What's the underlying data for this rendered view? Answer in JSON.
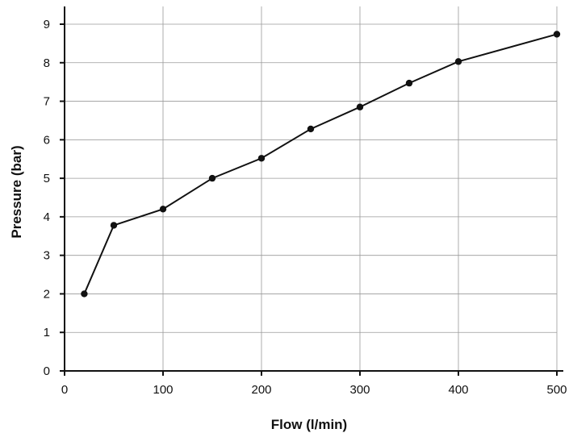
{
  "chart_data": {
    "type": "line",
    "title": "",
    "xlabel": "Flow (l/min)",
    "ylabel": "Pressure (bar)",
    "xlim": [
      0,
      500
    ],
    "ylim": [
      0,
      9
    ],
    "x_ticks": [
      0,
      100,
      200,
      300,
      400,
      500
    ],
    "y_ticks": [
      0,
      1,
      2,
      3,
      4,
      5,
      6,
      7,
      8,
      9
    ],
    "grid": true,
    "legend": "none",
    "series": [
      {
        "x": [
          20,
          50,
          100,
          150,
          200,
          250,
          300,
          350,
          400,
          500
        ],
        "y": [
          2.0,
          3.78,
          4.2,
          5.0,
          5.52,
          6.28,
          6.85,
          7.47,
          8.03,
          8.74
        ]
      }
    ]
  }
}
